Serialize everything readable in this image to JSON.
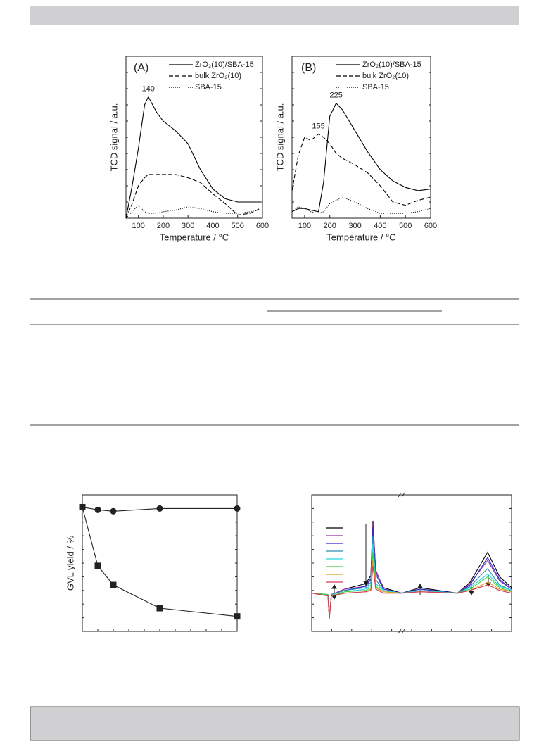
{
  "chart_data": [
    {
      "type": "line",
      "panel": "(A)",
      "ylabel": "TCD signal / a.u.",
      "xlabel": "Temperature / °C",
      "x": [
        50,
        75,
        100,
        125,
        140,
        175,
        200,
        250,
        300,
        350,
        400,
        450,
        500,
        550,
        590
      ],
      "xlim": [
        50,
        600
      ],
      "xticks": [
        100,
        200,
        300,
        400,
        500,
        600
      ],
      "ylim": [
        0,
        1
      ],
      "series": [
        {
          "name": "ZrO₂(10)/SBA-15",
          "color": "#000000",
          "dash": "solid",
          "values": [
            0,
            0.2,
            0.43,
            0.7,
            0.75,
            0.65,
            0.6,
            0.54,
            0.46,
            0.3,
            0.18,
            0.12,
            0.1,
            0.1,
            0.1
          ]
        },
        {
          "name": "bulk ZrO₂(10)",
          "color": "#000000",
          "dash": "dashed",
          "values": [
            0,
            0.09,
            0.2,
            0.25,
            0.27,
            0.27,
            0.27,
            0.27,
            0.25,
            0.22,
            0.15,
            0.09,
            0.02,
            0.03,
            0.06
          ]
        },
        {
          "name": "SBA-15",
          "color": "#000000",
          "dash": "dotted",
          "values": [
            0,
            0.04,
            0.08,
            0.04,
            0.03,
            0.03,
            0.04,
            0.05,
            0.07,
            0.06,
            0.04,
            0.03,
            0.03,
            0.04,
            0.05
          ]
        }
      ],
      "annotations": [
        {
          "text": "140",
          "x": 140,
          "y": 0.75
        }
      ]
    },
    {
      "type": "line",
      "panel": "(B)",
      "ylabel": "TCD signal / a.u.",
      "xlabel": "Temperature / °C",
      "x": [
        50,
        75,
        100,
        125,
        155,
        175,
        200,
        225,
        250,
        300,
        350,
        400,
        450,
        500,
        550,
        600
      ],
      "xlim": [
        50,
        600
      ],
      "xticks": [
        100,
        200,
        300,
        400,
        500,
        600
      ],
      "ylim": [
        0,
        1
      ],
      "series": [
        {
          "name": "ZrO₂(10)/SBA-15",
          "color": "#000000",
          "dash": "solid",
          "values": [
            0.04,
            0.06,
            0.06,
            0.05,
            0.04,
            0.22,
            0.63,
            0.71,
            0.67,
            0.54,
            0.41,
            0.3,
            0.23,
            0.19,
            0.17,
            0.18
          ]
        },
        {
          "name": "bulk ZrO₂(10)",
          "color": "#000000",
          "dash": "dashed",
          "values": [
            0.17,
            0.39,
            0.5,
            0.48,
            0.52,
            0.5,
            0.46,
            0.4,
            0.37,
            0.33,
            0.28,
            0.2,
            0.1,
            0.08,
            0.11,
            0.13
          ]
        },
        {
          "name": "SBA-15",
          "color": "#000000",
          "dash": "dotted",
          "values": [
            0.04,
            0.07,
            0.06,
            0.04,
            0.03,
            0.04,
            0.09,
            0.11,
            0.13,
            0.1,
            0.06,
            0.03,
            0.03,
            0.03,
            0.04,
            0.06
          ]
        }
      ],
      "annotations": [
        {
          "text": "225",
          "x": 225,
          "y": 0.71
        },
        {
          "text": "155",
          "x": 155,
          "y": 0.52
        }
      ]
    },
    {
      "type": "line",
      "ylabel": "GVL yield / %",
      "x": [
        0,
        1,
        2,
        5,
        10
      ],
      "xlim": [
        0,
        10
      ],
      "ylim": [
        0,
        100
      ],
      "series": [
        {
          "color": "#222222",
          "dash": "solid",
          "marker": "circle",
          "values": [
            91,
            89,
            88,
            90,
            90
          ]
        },
        {
          "color": "#222222",
          "dash": "solid",
          "marker": "square",
          "values": [
            91,
            48,
            34,
            17,
            11
          ]
        }
      ]
    },
    {
      "type": "line",
      "legend": "upper left",
      "x": [
        0,
        23,
        25,
        28,
        47,
        77,
        84,
        87,
        91,
        102,
        128,
        154,
        207,
        225,
        250,
        267,
        284
      ],
      "xlim": [
        0,
        284
      ],
      "ylim": [
        0,
        1
      ],
      "series": [
        {
          "color": "#000000",
          "dash": "solid",
          "values": [
            0.28,
            0.27,
            0.11,
            0.27,
            0.31,
            0.35,
            0.41,
            0.81,
            0.44,
            0.32,
            0.28,
            0.32,
            0.28,
            0.36,
            0.58,
            0.4,
            0.32
          ]
        },
        {
          "color": "#9b2fa8",
          "dash": "solid",
          "values": [
            0.28,
            0.27,
            0.11,
            0.27,
            0.31,
            0.33,
            0.39,
            0.79,
            0.45,
            0.31,
            0.28,
            0.31,
            0.28,
            0.35,
            0.52,
            0.37,
            0.31
          ]
        },
        {
          "color": "#2a2ad0",
          "dash": "solid",
          "values": [
            0.28,
            0.27,
            0.11,
            0.27,
            0.3,
            0.33,
            0.38,
            0.76,
            0.42,
            0.31,
            0.28,
            0.31,
            0.28,
            0.34,
            0.54,
            0.38,
            0.31
          ]
        },
        {
          "color": "#2a8fb0",
          "dash": "solid",
          "values": [
            0.28,
            0.27,
            0.1,
            0.27,
            0.3,
            0.32,
            0.36,
            0.7,
            0.38,
            0.3,
            0.28,
            0.3,
            0.28,
            0.33,
            0.46,
            0.34,
            0.3
          ]
        },
        {
          "color": "#22d8e0",
          "dash": "solid",
          "values": [
            0.28,
            0.27,
            0.1,
            0.26,
            0.29,
            0.31,
            0.34,
            0.64,
            0.35,
            0.3,
            0.28,
            0.3,
            0.28,
            0.32,
            0.42,
            0.33,
            0.3
          ]
        },
        {
          "color": "#3ad23a",
          "dash": "solid",
          "values": [
            0.28,
            0.27,
            0.1,
            0.26,
            0.29,
            0.3,
            0.32,
            0.58,
            0.33,
            0.29,
            0.28,
            0.29,
            0.28,
            0.31,
            0.4,
            0.32,
            0.29
          ]
        },
        {
          "color": "#e89a1c",
          "dash": "solid",
          "values": [
            0.28,
            0.26,
            0.1,
            0.26,
            0.28,
            0.29,
            0.31,
            0.52,
            0.32,
            0.29,
            0.28,
            0.29,
            0.28,
            0.3,
            0.36,
            0.31,
            0.29
          ]
        },
        {
          "color": "#d43a5a",
          "dash": "solid",
          "values": [
            0.28,
            0.26,
            0.09,
            0.26,
            0.28,
            0.29,
            0.3,
            0.48,
            0.31,
            0.28,
            0.28,
            0.29,
            0.28,
            0.3,
            0.34,
            0.3,
            0.28
          ]
        }
      ]
    }
  ]
}
